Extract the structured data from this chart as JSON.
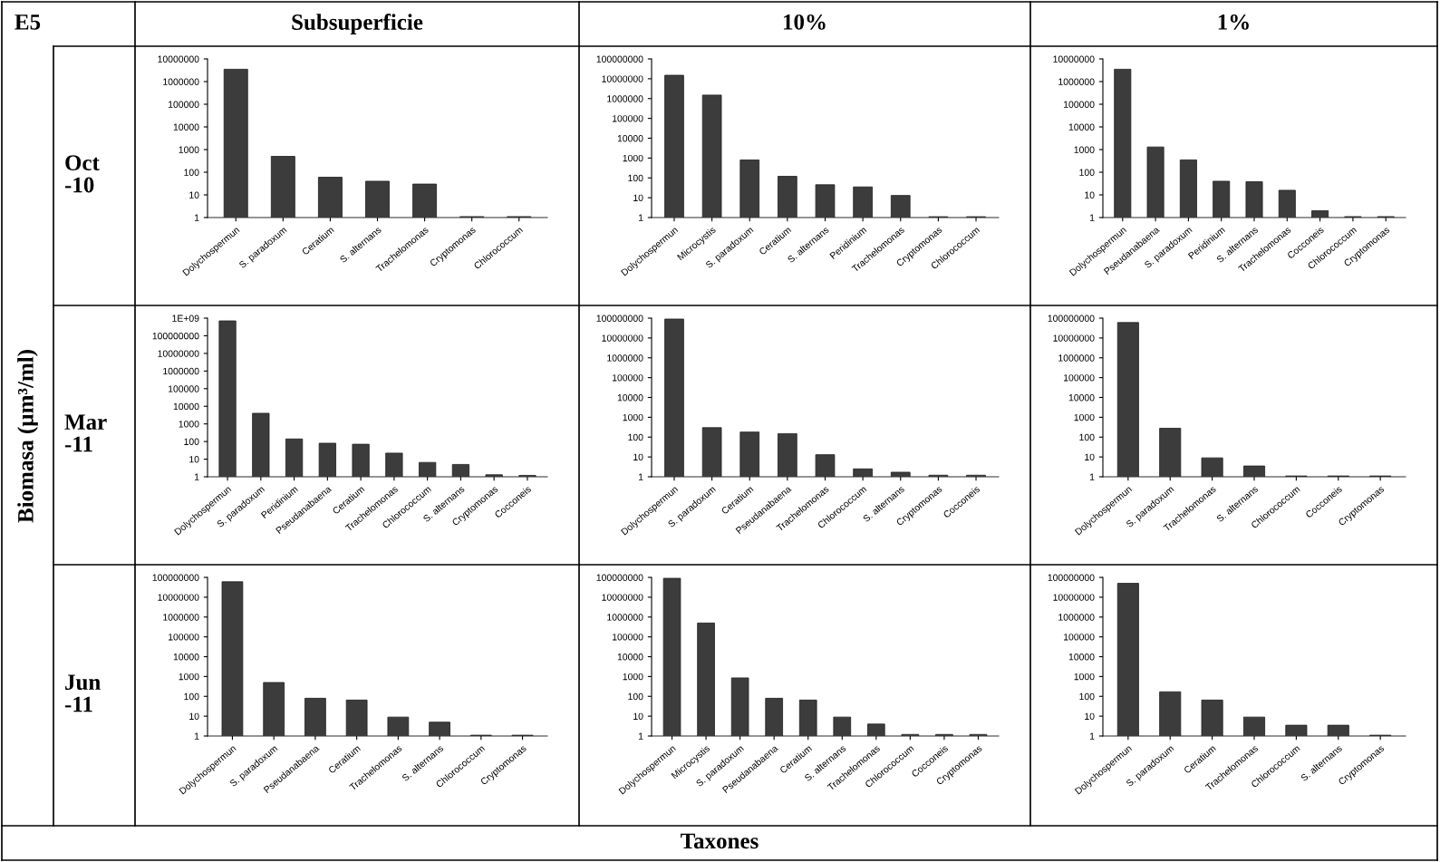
{
  "chart_data": [
    {
      "type": "bar",
      "title": "Subsuperficie",
      "ylabel": "Oct\n-10",
      "log": true,
      "color": "#3c3c3c",
      "annotations": [
        "E5",
        "Biomasa (µm³/ml)",
        "Taxones"
      ],
      "categories": [
        "Dolychospermun",
        "S. paradoxum",
        "Ceratium",
        "S. alternans",
        "Trachelomonas",
        "Cryptomonas",
        "Chlorococcum"
      ],
      "values": [
        3500000,
        500,
        60,
        40,
        30,
        1.1,
        1.1
      ],
      "ylim": [
        1,
        10000000
      ],
      "yticks": [
        1,
        10,
        100,
        1000,
        10000,
        100000,
        1000000,
        10000000
      ]
    },
    {
      "type": "bar",
      "title": "10%",
      "log": true,
      "color": "#3c3c3c",
      "categories": [
        "Dolychospermun",
        "Microcystis",
        "S. paradoxum",
        "Ceratium",
        "S. alternans",
        "Peridinium",
        "Trachelomonas",
        "Cryptomonas",
        "Chlorococcum"
      ],
      "values": [
        15000000,
        1500000,
        800,
        120,
        45,
        35,
        13,
        1.1,
        1.1
      ],
      "ylim": [
        1,
        100000000
      ],
      "yticks": [
        1,
        10,
        100,
        1000,
        10000,
        100000,
        1000000,
        10000000,
        100000000
      ]
    },
    {
      "type": "bar",
      "title": "1%",
      "log": true,
      "color": "#3c3c3c",
      "categories": [
        "Dolychospermun",
        "Pseudanabaena",
        "S. paradoxum",
        "Peridinium",
        "S. alternans",
        "Trachelomonas",
        "Cocconeis",
        "Chlorococcum",
        "Cryptomonas"
      ],
      "values": [
        3500000,
        1300,
        350,
        40,
        38,
        16,
        2,
        1.1,
        1.1
      ],
      "ylim": [
        1,
        10000000
      ],
      "yticks": [
        1,
        10,
        100,
        1000,
        10000,
        100000,
        1000000,
        10000000
      ]
    },
    {
      "type": "bar",
      "ylabel": "Mar\n-11",
      "log": true,
      "color": "#3c3c3c",
      "categories": [
        "Dolychospermun",
        "S. paradoxum",
        "Peridinium",
        "Pseudanabaena",
        "Ceratium",
        "Trachelomonas",
        "Chlorococcum",
        "S. alternans",
        "Cryptomonas",
        "Cocconeis"
      ],
      "values": [
        700000000,
        4000,
        140,
        80,
        70,
        22,
        6.5,
        5,
        1.3,
        1.2
      ],
      "ylim": [
        1,
        1000000000
      ],
      "yticks": [
        1,
        10,
        100,
        1000,
        10000,
        100000,
        1000000,
        10000000,
        100000000,
        {
          "value": 1000000000,
          "label": "1E+09"
        }
      ]
    },
    {
      "type": "bar",
      "log": true,
      "color": "#3c3c3c",
      "categories": [
        "Dolychospermun",
        "S. paradoxum",
        "Ceratium",
        "Pseudanabaena",
        "Trachelomonas",
        "Chlorococcum",
        "S. alternans",
        "Cryptomonas",
        "Cocconeis"
      ],
      "values": [
        90000000,
        300,
        180,
        150,
        13,
        2.5,
        1.7,
        1.2,
        1.2
      ],
      "ylim": [
        1,
        100000000
      ],
      "yticks": [
        1,
        10,
        100,
        1000,
        10000,
        100000,
        1000000,
        10000000,
        100000000
      ]
    },
    {
      "type": "bar",
      "log": true,
      "color": "#3c3c3c",
      "categories": [
        "Dolychospermun",
        "S. paradoxum",
        "Trachelomonas",
        "S. alternans",
        "Chlorococcum",
        "Cocconeis",
        "Cryptomonas"
      ],
      "values": [
        60000000,
        280,
        9,
        3.5,
        1.1,
        1.1,
        1.1
      ],
      "ylim": [
        1,
        100000000
      ],
      "yticks": [
        1,
        10,
        100,
        1000,
        10000,
        100000,
        1000000,
        10000000,
        100000000
      ]
    },
    {
      "type": "bar",
      "ylabel": "Jun\n-11",
      "log": true,
      "color": "#3c3c3c",
      "categories": [
        "Dolychospermun",
        "S. paradoxum",
        "Pseudanabaena",
        "Ceratium",
        "Trachelomonas",
        "S. alternans",
        "Chlorococcum",
        "Cryptomonas"
      ],
      "values": [
        60000000,
        500,
        80,
        65,
        9,
        5,
        1.1,
        1.1
      ],
      "ylim": [
        1,
        100000000
      ],
      "yticks": [
        1,
        10,
        100,
        1000,
        10000,
        100000,
        1000000,
        10000000,
        100000000
      ]
    },
    {
      "type": "bar",
      "log": true,
      "color": "#3c3c3c",
      "categories": [
        "Dolychospermun",
        "Microcystis",
        "S. paradoxum",
        "Pseudanabaena",
        "Ceratium",
        "S. alternans",
        "Trachelomonas",
        "Chlorococcum",
        "Cocconeis",
        "Cryptomonas"
      ],
      "values": [
        90000000,
        500000,
        850,
        80,
        65,
        9,
        4,
        1.2,
        1.2,
        1.2
      ],
      "ylim": [
        1,
        100000000
      ],
      "yticks": [
        1,
        10,
        100,
        1000,
        10000,
        100000,
        1000000,
        10000000,
        100000000
      ]
    },
    {
      "type": "bar",
      "log": true,
      "color": "#3c3c3c",
      "categories": [
        "Dolychospermun",
        "S. paradoxum",
        "Ceratium",
        "Trachelomonas",
        "Chlorococcum",
        "S. alternans",
        "Cryptomonas"
      ],
      "values": [
        50000000,
        170,
        65,
        9,
        3.5,
        3.5,
        1.1
      ],
      "ylim": [
        1,
        100000000
      ],
      "yticks": [
        1,
        10,
        100,
        1000,
        10000,
        100000,
        1000000,
        10000000,
        100000000
      ]
    }
  ]
}
